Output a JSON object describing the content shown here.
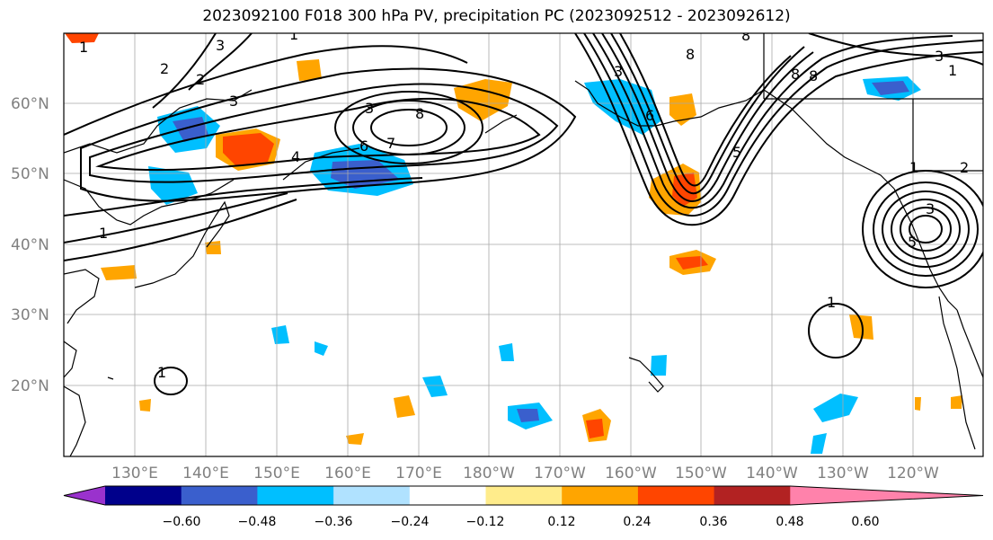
{
  "title": "2023092100 F018 300 hPa PV, precipitation PC (2023092512 - 2023092612)",
  "lat_labels": [
    "60°N",
    "50°N",
    "40°N",
    "30°N",
    "20°N"
  ],
  "lon_labels": [
    "130°E",
    "140°E",
    "150°E",
    "160°E",
    "170°E",
    "180°W",
    "170°W",
    "160°W",
    "150°W",
    "140°W",
    "130°W",
    "120°W"
  ],
  "colorbar": {
    "colors": [
      "#9a32cd",
      "#00008b",
      "#3a5fcd",
      "#00bfff",
      "#b0e2ff",
      "#ffffff",
      "#ffec8b",
      "#ffa500",
      "#ff4500",
      "#b22222",
      "#ff82ab"
    ],
    "tick_labels": [
      "−0.60",
      "−0.48",
      "−0.36",
      "−0.24",
      "−0.12",
      "0.12",
      "0.24",
      "0.36",
      "0.48",
      "0.60"
    ]
  },
  "contour_labels": [
    "1",
    "2",
    "3",
    "4",
    "5",
    "6",
    "7",
    "8"
  ]
}
